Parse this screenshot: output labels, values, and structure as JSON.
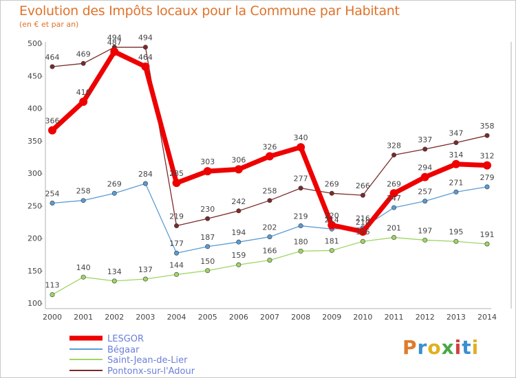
{
  "title": "Evolution des Impôts locaux pour la Commune par Habitant",
  "subtitle": "(en € et par an)",
  "logo_text": "Proxiti",
  "logo_colors": [
    "#e07b2a",
    "#3a8fd0",
    "#e0b020",
    "#4aa845",
    "#d04040",
    "#3a8fd0",
    "#e0b020"
  ],
  "chart_data": {
    "type": "line",
    "x": [
      2000,
      2001,
      2002,
      2003,
      2004,
      2005,
      2006,
      2007,
      2008,
      2009,
      2010,
      2011,
      2012,
      2013,
      2014
    ],
    "ylim": [
      100,
      500
    ],
    "yticks": [
      100,
      150,
      200,
      250,
      300,
      350,
      400,
      450,
      500
    ],
    "grid": false,
    "legend_position": "bottom-left",
    "series": [
      {
        "name": "LESGOR",
        "color": "#ee0000",
        "values": [
          366,
          410,
          487,
          464,
          285,
          303,
          306,
          326,
          340,
          220,
          210,
          269,
          294,
          314,
          312
        ]
      },
      {
        "name": "Bégaar",
        "color": "#5b9bd5",
        "values": [
          254,
          258,
          269,
          284,
          177,
          187,
          194,
          202,
          219,
          214,
          216,
          247,
          257,
          271,
          279
        ]
      },
      {
        "name": "Saint-Jean-de-Lier",
        "color": "#9ed563",
        "values": [
          113,
          140,
          134,
          137,
          144,
          150,
          159,
          166,
          180,
          181,
          195,
          201,
          197,
          195,
          191
        ]
      },
      {
        "name": "Pontonx-sur-l'Adour",
        "color": "#7a2a2a",
        "values": [
          464,
          469,
          494,
          494,
          219,
          230,
          242,
          258,
          277,
          269,
          266,
          328,
          337,
          347,
          358
        ]
      }
    ]
  }
}
